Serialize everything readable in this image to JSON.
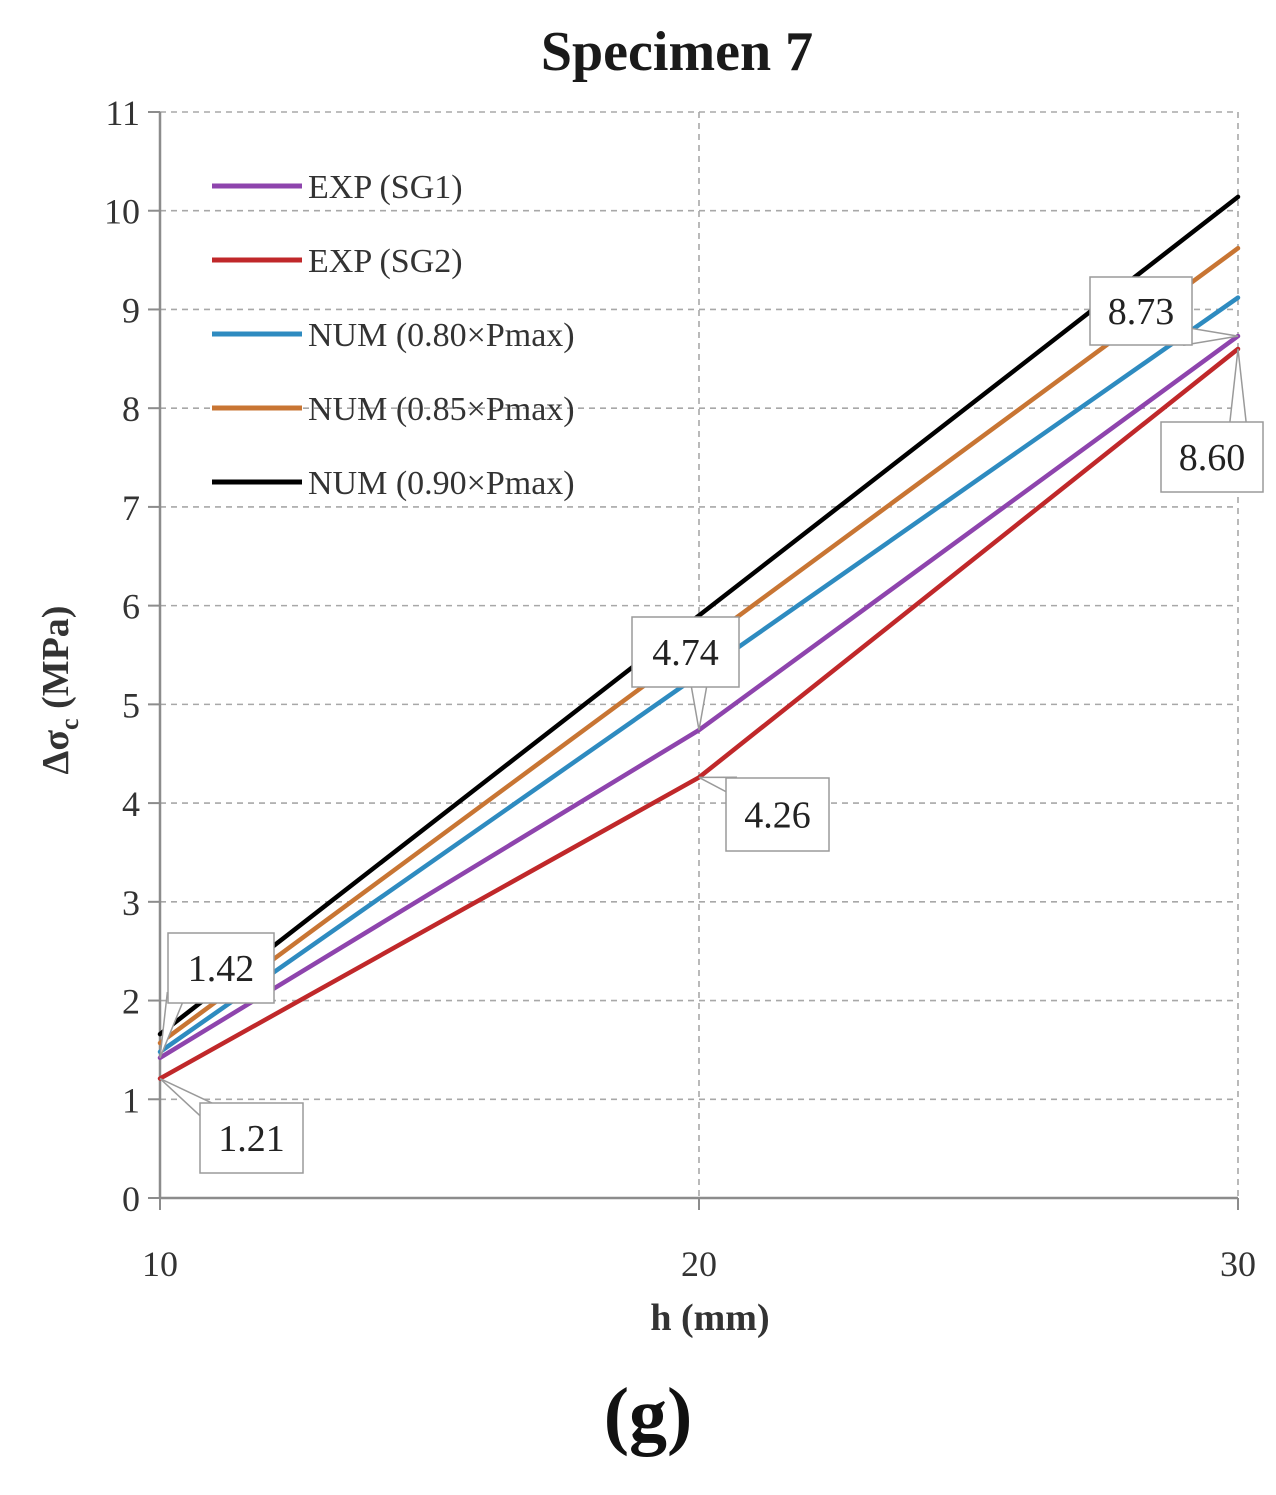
{
  "chart_data": {
    "type": "line",
    "title": "Specimen 7",
    "xlabel": "h (mm)",
    "ylabel_main": "Δσ",
    "ylabel_sub": "c",
    "ylabel_unit": " (MPa)",
    "xlim": [
      10,
      30
    ],
    "ylim": [
      0,
      11
    ],
    "xticks": [
      10,
      20,
      30
    ],
    "yticks": [
      0,
      1,
      2,
      3,
      4,
      5,
      6,
      7,
      8,
      9,
      10,
      11
    ],
    "grid": true,
    "legend_position": "top-left",
    "x": [
      10,
      20,
      30
    ],
    "series": [
      {
        "name": "EXP (SG1)",
        "color": "#8e44ad",
        "values": [
          1.42,
          4.74,
          8.73
        ]
      },
      {
        "name": "EXP (SG2)",
        "color": "#c0282a",
        "values": [
          1.21,
          4.26,
          8.6
        ]
      },
      {
        "name": "NUM (0.80×Pmax)",
        "color": "#2e8bc0",
        "values": [
          1.48,
          5.3,
          9.12
        ]
      },
      {
        "name": "NUM (0.85×Pmax)",
        "color": "#c87533",
        "values": [
          1.57,
          5.6,
          9.62
        ]
      },
      {
        "name": "NUM (0.90×Pmax)",
        "color": "#000000",
        "values": [
          1.66,
          5.9,
          10.14
        ]
      }
    ],
    "annotations": [
      {
        "text": "1.42",
        "series": 0,
        "x": 10,
        "y": 1.42
      },
      {
        "text": "1.21",
        "series": 1,
        "x": 10,
        "y": 1.21
      },
      {
        "text": "4.74",
        "series": 0,
        "x": 20,
        "y": 4.74
      },
      {
        "text": "4.26",
        "series": 1,
        "x": 20,
        "y": 4.26
      },
      {
        "text": "8.73",
        "series": 0,
        "x": 30,
        "y": 8.73
      },
      {
        "text": "8.60",
        "series": 1,
        "x": 30,
        "y": 8.6
      }
    ]
  },
  "caption": "(g)"
}
